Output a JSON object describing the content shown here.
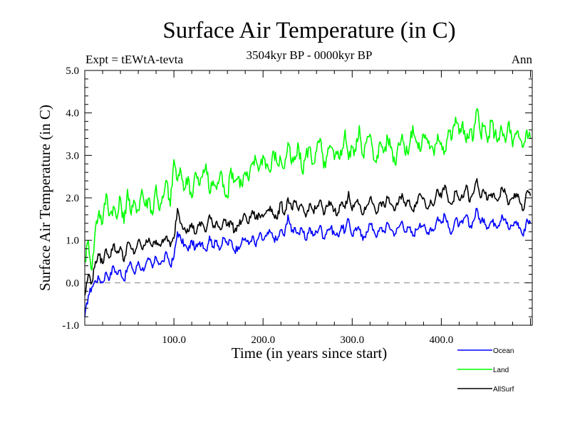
{
  "chart_data": {
    "type": "line",
    "title": "Surface Air Temperature (in C)",
    "subtitle": "3504kyr BP - 0000kyr BP",
    "experiment_label": "Expt = tEWtA-tevta",
    "season_label": "Ann",
    "xlabel": "Time (in years since start)",
    "ylabel": "Surface Air Temperature (in C)",
    "xlim": [
      0,
      502
    ],
    "ylim": [
      -1.0,
      5.0
    ],
    "xticks": [
      100,
      200,
      300,
      400
    ],
    "xtick_labels": [
      "100.0",
      "200.0",
      "300.0",
      "400.0"
    ],
    "yticks": [
      -1,
      0,
      1,
      2,
      3,
      4,
      5
    ],
    "ytick_labels": [
      "-1.0",
      "0.0",
      "1.0",
      "2.0",
      "3.0",
      "4.0",
      "5.0"
    ],
    "reference_line": {
      "y": 0.0,
      "style": "dashed",
      "color": "#808080"
    },
    "grid": false,
    "legend_position": "bottom-right",
    "x": [
      0,
      4,
      8,
      12,
      16,
      20,
      24,
      28,
      32,
      36,
      40,
      44,
      48,
      52,
      56,
      60,
      64,
      68,
      72,
      76,
      80,
      84,
      88,
      92,
      96,
      100,
      104,
      108,
      112,
      116,
      120,
      124,
      128,
      132,
      136,
      140,
      144,
      148,
      152,
      156,
      160,
      164,
      168,
      172,
      176,
      180,
      184,
      188,
      192,
      196,
      200,
      204,
      208,
      212,
      216,
      220,
      224,
      228,
      232,
      236,
      240,
      244,
      248,
      252,
      256,
      260,
      264,
      268,
      272,
      276,
      280,
      284,
      288,
      292,
      296,
      300,
      304,
      308,
      312,
      316,
      320,
      324,
      328,
      332,
      336,
      340,
      344,
      348,
      352,
      356,
      360,
      364,
      368,
      372,
      376,
      380,
      384,
      388,
      392,
      396,
      400,
      404,
      408,
      412,
      416,
      420,
      424,
      428,
      432,
      436,
      440,
      444,
      448,
      452,
      456,
      460,
      464,
      468,
      472,
      476,
      480,
      484,
      488,
      492,
      496,
      500
    ],
    "series": [
      {
        "name": "Ocean",
        "color": "#0000ff",
        "values": [
          -0.8,
          -0.3,
          -0.1,
          0.05,
          0.1,
          0.0,
          0.25,
          0.1,
          0.4,
          0.2,
          0.3,
          0.05,
          0.35,
          0.45,
          0.2,
          0.5,
          0.3,
          0.4,
          0.55,
          0.35,
          0.6,
          0.45,
          0.5,
          0.7,
          0.4,
          0.6,
          1.2,
          1.0,
          0.9,
          0.75,
          1.0,
          0.8,
          0.9,
          0.95,
          0.75,
          1.1,
          0.85,
          1.0,
          0.8,
          1.05,
          0.9,
          1.0,
          0.75,
          0.85,
          0.95,
          1.05,
          0.9,
          1.1,
          0.85,
          1.15,
          1.0,
          1.1,
          1.2,
          1.05,
          1.0,
          1.25,
          1.1,
          1.6,
          1.2,
          1.3,
          1.15,
          1.25,
          1.0,
          1.3,
          1.1,
          1.2,
          1.35,
          1.05,
          1.25,
          1.3,
          1.15,
          1.1,
          1.35,
          1.2,
          1.5,
          1.1,
          1.3,
          1.25,
          1.0,
          1.2,
          1.4,
          1.25,
          1.1,
          1.3,
          1.2,
          1.4,
          1.25,
          1.15,
          1.3,
          1.45,
          1.2,
          1.3,
          1.1,
          1.25,
          1.4,
          1.35,
          1.15,
          1.3,
          1.25,
          1.55,
          1.4,
          1.6,
          1.3,
          1.2,
          1.5,
          1.35,
          1.4,
          1.6,
          1.3,
          1.45,
          1.75,
          1.4,
          1.5,
          1.3,
          1.45,
          1.4,
          1.35,
          1.6,
          1.5,
          1.25,
          1.35,
          1.45,
          1.3,
          1.1,
          1.5,
          1.4
        ]
      },
      {
        "name": "Land",
        "color": "#00ff00",
        "values": [
          0.5,
          1.0,
          0.3,
          1.3,
          1.7,
          1.4,
          2.1,
          1.6,
          1.8,
          1.5,
          2.0,
          1.4,
          2.2,
          1.6,
          1.9,
          1.7,
          2.2,
          1.8,
          2.0,
          1.6,
          2.3,
          1.7,
          2.0,
          2.4,
          1.8,
          2.9,
          2.4,
          2.6,
          2.2,
          2.5,
          2.0,
          2.6,
          2.3,
          2.5,
          2.8,
          2.1,
          2.4,
          2.2,
          2.6,
          2.3,
          2.0,
          2.7,
          2.4,
          2.5,
          2.3,
          2.6,
          2.4,
          2.8,
          2.9,
          2.7,
          3.0,
          2.8,
          2.6,
          3.1,
          2.8,
          2.9,
          2.7,
          3.3,
          2.8,
          2.9,
          3.2,
          2.6,
          3.0,
          3.2,
          2.8,
          3.1,
          3.4,
          2.7,
          3.0,
          3.2,
          2.9,
          3.1,
          3.0,
          3.6,
          2.9,
          3.2,
          3.1,
          3.7,
          3.0,
          3.3,
          3.5,
          2.9,
          3.0,
          3.3,
          3.1,
          3.4,
          3.2,
          2.8,
          3.3,
          3.5,
          3.0,
          3.2,
          3.7,
          3.3,
          3.1,
          3.5,
          3.4,
          3.2,
          3.0,
          3.5,
          3.3,
          3.1,
          3.6,
          3.4,
          3.9,
          3.5,
          3.8,
          3.3,
          3.6,
          3.4,
          4.1,
          3.5,
          3.7,
          3.3,
          3.8,
          3.5,
          3.4,
          3.6,
          3.3,
          3.8,
          3.2,
          3.5,
          3.4,
          3.2,
          3.6,
          3.4
        ]
      },
      {
        "name": "AllSurf",
        "color": "#000000",
        "values": [
          -0.3,
          0.2,
          0.0,
          0.5,
          0.65,
          0.45,
          0.8,
          0.6,
          0.9,
          0.7,
          0.85,
          0.5,
          0.95,
          0.8,
          0.7,
          1.0,
          0.8,
          0.9,
          1.05,
          0.85,
          1.0,
          0.9,
          0.95,
          1.1,
          0.85,
          1.05,
          1.75,
          1.4,
          1.3,
          1.2,
          1.4,
          1.15,
          1.35,
          1.4,
          1.2,
          1.6,
          1.3,
          1.45,
          1.25,
          1.5,
          1.35,
          1.45,
          1.2,
          1.35,
          1.45,
          1.6,
          1.4,
          1.7,
          1.5,
          1.6,
          1.55,
          1.7,
          1.8,
          1.6,
          1.5,
          1.9,
          1.6,
          2.0,
          1.75,
          1.9,
          1.7,
          1.8,
          1.55,
          1.85,
          1.7,
          1.75,
          1.95,
          1.6,
          1.8,
          1.9,
          1.7,
          1.65,
          1.9,
          1.75,
          2.15,
          1.7,
          1.9,
          1.85,
          1.6,
          1.8,
          2.0,
          1.85,
          1.65,
          1.9,
          1.8,
          2.0,
          1.85,
          1.7,
          1.9,
          2.1,
          1.8,
          1.95,
          1.7,
          1.9,
          2.1,
          2.0,
          1.75,
          1.95,
          1.85,
          2.2,
          2.0,
          2.3,
          1.9,
          1.85,
          2.15,
          1.95,
          2.0,
          2.3,
          1.9,
          2.1,
          2.45,
          2.0,
          2.15,
          1.95,
          2.1,
          2.0,
          1.95,
          2.25,
          2.1,
          1.85,
          2.0,
          2.1,
          1.9,
          1.7,
          2.15,
          2.05
        ]
      }
    ]
  }
}
